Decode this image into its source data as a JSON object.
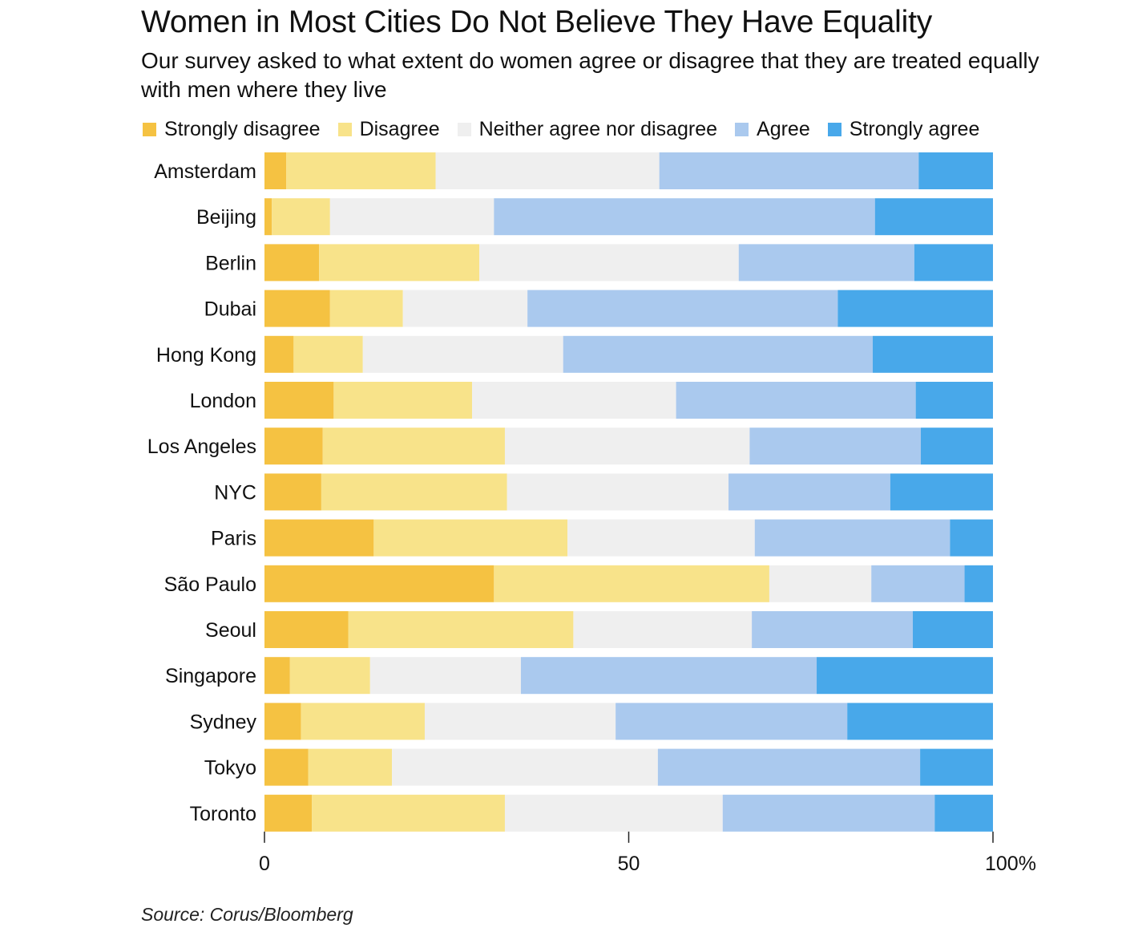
{
  "title": "Women in Most Cities Do Not Believe They Have Equality",
  "subtitle": "Our survey asked to what extent do women agree or disagree that they are treated equally with men where they live",
  "source": "Source: Corus/Bloomberg",
  "chart_data": {
    "type": "bar",
    "orientation": "horizontal",
    "stacked": true,
    "categories": [
      "Amsterdam",
      "Beijing",
      "Berlin",
      "Dubai",
      "Hong Kong",
      "London",
      "Los Angeles",
      "NYC",
      "Paris",
      "São Paulo",
      "Seoul",
      "Singapore",
      "Sydney",
      "Tokyo",
      "Toronto"
    ],
    "series": [
      {
        "name": "Strongly disagree",
        "color": "#f5c242",
        "values": [
          3,
          1,
          7.5,
          9,
          4,
          9.5,
          8,
          7.8,
          15,
          31.5,
          11.5,
          3.5,
          5,
          6,
          6.5
        ]
      },
      {
        "name": "Disagree",
        "color": "#f8e38a",
        "values": [
          20.5,
          8,
          22,
          10,
          9.5,
          19,
          25,
          25.5,
          26.6,
          37.8,
          30.9,
          11,
          17,
          11.5,
          26.5
        ]
      },
      {
        "name": "Neither agree nor disagree",
        "color": "#efefef",
        "values": [
          30.7,
          22.5,
          35.6,
          17.1,
          27.5,
          28,
          33.6,
          30.4,
          25.7,
          14,
          24.5,
          20.7,
          26.2,
          36.5,
          29.9
        ]
      },
      {
        "name": "Agree",
        "color": "#aac9ee",
        "values": [
          35.6,
          52.3,
          24.1,
          42.6,
          42.5,
          32.9,
          23.5,
          22.2,
          26.8,
          12.8,
          22.1,
          40.6,
          31.8,
          36,
          29.1
        ]
      },
      {
        "name": "Strongly agree",
        "color": "#48a8ea",
        "values": [
          10.2,
          16.2,
          10.8,
          21.3,
          16.5,
          10.6,
          9.9,
          14.1,
          5.9,
          3.9,
          11,
          24.2,
          20,
          10,
          8
        ]
      }
    ],
    "xaxis": {
      "ticks": [
        "0",
        "50",
        "100%"
      ],
      "tick_values": [
        0,
        50,
        100
      ]
    },
    "xlim": [
      0,
      100
    ],
    "legend_position": "top",
    "grid": false
  }
}
